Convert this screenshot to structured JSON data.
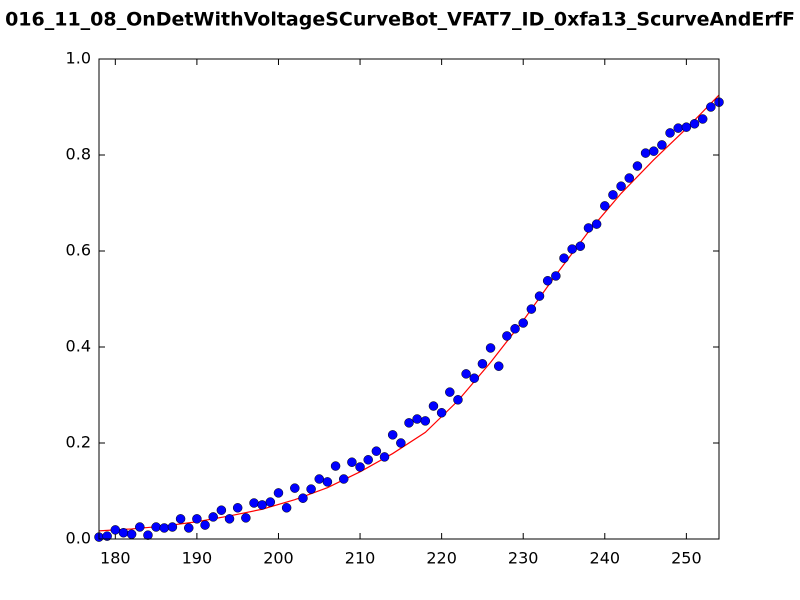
{
  "chart_data": {
    "type": "scatter",
    "title": "016_11_08_OnDetWithVoltageSCurveBot_VFAT7_ID_0xfa13_ScurveAndErfF",
    "xlim": [
      178,
      254
    ],
    "ylim": [
      0,
      1
    ],
    "xticks": [
      180,
      190,
      200,
      210,
      220,
      230,
      240,
      250
    ],
    "yticks": [
      {
        "value": 0,
        "label": "0.0"
      },
      0.2,
      0.4,
      0.6,
      0.8,
      {
        "value": 1,
        "label": "1.0"
      }
    ],
    "grid": false,
    "series": [
      {
        "type": "scatter",
        "color": "#0000ff",
        "x": [
          178,
          179,
          180,
          181,
          182,
          183,
          184,
          185,
          186,
          187,
          188,
          189,
          190,
          191,
          192,
          193,
          194,
          195,
          196,
          197,
          198,
          199,
          200,
          201,
          202,
          203,
          204,
          205,
          206,
          207,
          208,
          209,
          210,
          211,
          212,
          213,
          214,
          215,
          216,
          217,
          218,
          219,
          220,
          221,
          222,
          223,
          224,
          225,
          226,
          227,
          228,
          229,
          230,
          231,
          232,
          233,
          234,
          235,
          236,
          237,
          238,
          239,
          240,
          241,
          242,
          243,
          244,
          245,
          246,
          247,
          248,
          249,
          250,
          251,
          252,
          253,
          254
        ],
        "values": [
          0.004,
          0.006,
          0.019,
          0.013,
          0.01,
          0.025,
          0.008,
          0.025,
          0.023,
          0.025,
          0.042,
          0.023,
          0.042,
          0.029,
          0.046,
          0.06,
          0.042,
          0.065,
          0.044,
          0.075,
          0.071,
          0.077,
          0.096,
          0.065,
          0.106,
          0.085,
          0.104,
          0.125,
          0.119,
          0.152,
          0.125,
          0.16,
          0.15,
          0.165,
          0.183,
          0.171,
          0.217,
          0.2,
          0.242,
          0.25,
          0.246,
          0.277,
          0.263,
          0.306,
          0.29,
          0.344,
          0.335,
          0.365,
          0.398,
          0.36,
          0.423,
          0.438,
          0.45,
          0.479,
          0.506,
          0.538,
          0.548,
          0.585,
          0.604,
          0.61,
          0.648,
          0.656,
          0.694,
          0.717,
          0.735,
          0.752,
          0.777,
          0.804,
          0.808,
          0.821,
          0.846,
          0.856,
          0.858,
          0.865,
          0.875,
          0.9,
          0.91
        ]
      },
      {
        "type": "line",
        "color": "#ff0000",
        "x": [
          178,
          182,
          186,
          190,
          194,
          198,
          202,
          206,
          210,
          214,
          218,
          222,
          226,
          230,
          234,
          238,
          242,
          246,
          250,
          254
        ],
        "values": [
          0.017,
          0.021,
          0.027,
          0.036,
          0.048,
          0.062,
          0.082,
          0.107,
          0.14,
          0.178,
          0.222,
          0.288,
          0.368,
          0.455,
          0.55,
          0.64,
          0.72,
          0.79,
          0.855,
          0.925
        ]
      }
    ]
  }
}
